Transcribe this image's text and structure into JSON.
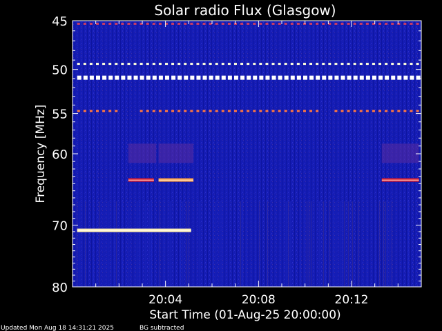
{
  "chart_data": {
    "type": "heatmap",
    "title": "Solar radio Flux (Glasgow)",
    "xlabel": "Start Time (01-Aug-25 20:00:00)",
    "ylabel": "Frequency [MHz]",
    "x_unit": "minutes after 20:00:00",
    "xlim": [
      0,
      15
    ],
    "ylim": [
      80,
      45
    ],
    "yscale": "log",
    "x_ticks": [
      {
        "value": 4,
        "label": "20:04"
      },
      {
        "value": 8,
        "label": "20:08"
      },
      {
        "value": 12,
        "label": "20:12"
      }
    ],
    "y_ticks": [
      {
        "value": 45,
        "label": "45"
      },
      {
        "value": 50,
        "label": "50"
      },
      {
        "value": 55,
        "label": "55"
      },
      {
        "value": 60,
        "label": "60"
      },
      {
        "value": 70,
        "label": "70"
      },
      {
        "value": 80,
        "label": "80"
      }
    ],
    "background_color": "#141cb4",
    "features": [
      {
        "name": "45.3 MHz line",
        "freq_mhz": 45.3,
        "x_start": 0.2,
        "x_end": 14.9,
        "style": "dashed",
        "color": "#c83c64"
      },
      {
        "name": "49.4 MHz line",
        "freq_mhz": 49.4,
        "x_start": 0.2,
        "x_end": 14.9,
        "style": "dashed",
        "color": "#ffffdc"
      },
      {
        "name": "50.9 MHz line",
        "freq_mhz": 50.9,
        "x_start": 0.2,
        "x_end": 14.9,
        "style": "dashed",
        "color": "#ffffff"
      },
      {
        "name": "54.7 MHz line",
        "freq_mhz": 54.7,
        "x_start": 0.2,
        "x_end": 14.9,
        "style": "dashed",
        "color": "#ff7840",
        "gaps": [
          [
            2.0,
            2.7
          ],
          [
            10.6,
            11.1
          ]
        ]
      },
      {
        "name": "63.5 MHz burst A",
        "freq_mhz": 63.5,
        "x_start": 2.4,
        "x_end": 3.5,
        "style": "solid",
        "color": "#e01e2a"
      },
      {
        "name": "63.5 MHz burst B",
        "freq_mhz": 63.5,
        "x_start": 3.7,
        "x_end": 5.2,
        "style": "solid",
        "color": "#ffa040"
      },
      {
        "name": "63.5 MHz burst C",
        "freq_mhz": 63.5,
        "x_start": 13.3,
        "x_end": 14.9,
        "style": "solid",
        "color": "#e01e2a"
      },
      {
        "name": "70.8 MHz emission",
        "freq_mhz": 70.8,
        "x_start": 0.2,
        "x_end": 5.1,
        "style": "solid",
        "color": "#fff0b4"
      }
    ]
  },
  "footer": {
    "updated": "Updated Mon Aug 18 14:31:21 2025",
    "note": "BG subtracted"
  }
}
